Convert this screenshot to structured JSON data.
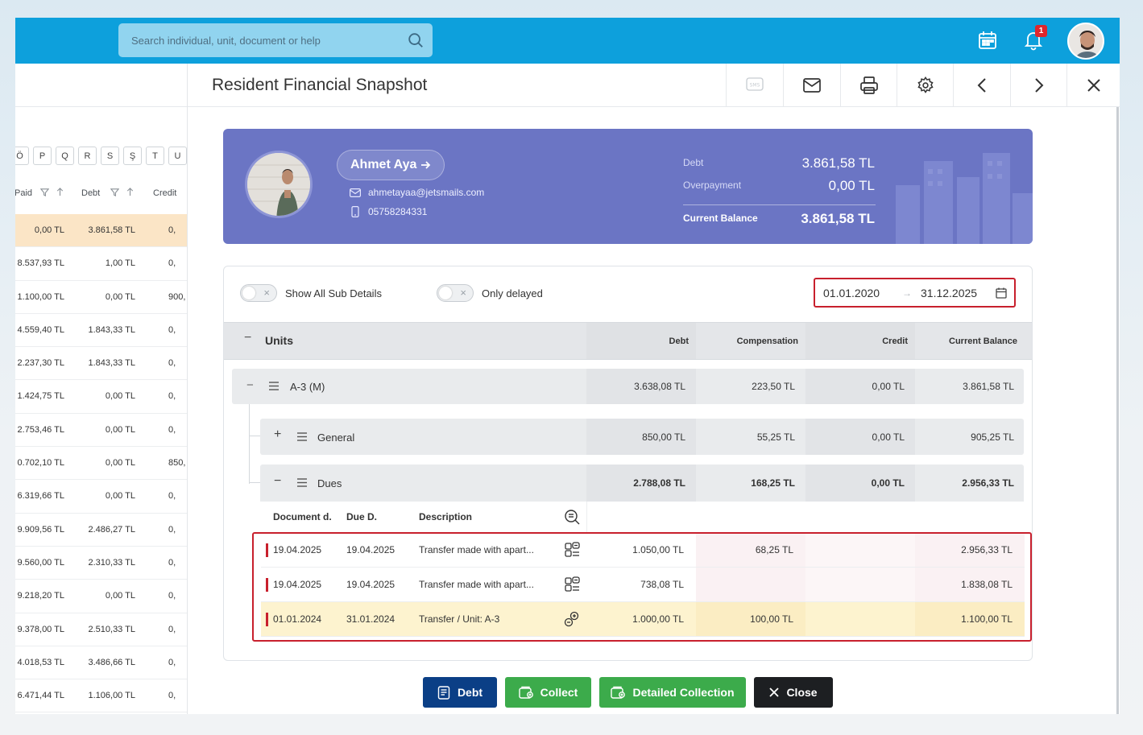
{
  "search": {
    "placeholder": "Search individual, unit, document or help"
  },
  "notifications": {
    "badge": "1"
  },
  "left_list": {
    "letters": [
      "Ö",
      "P",
      "Q",
      "R",
      "S",
      "Ş",
      "T",
      "U"
    ],
    "headers": {
      "paid": "Paid",
      "debt": "Debt",
      "credit": "Credit"
    },
    "rows": [
      {
        "paid": "0,00 TL",
        "debt": "3.861,58 TL",
        "credit": "0,",
        "highlight": true
      },
      {
        "paid": "8.537,93 TL",
        "debt": "1,00 TL",
        "credit": "0,"
      },
      {
        "paid": "1.100,00 TL",
        "debt": "0,00 TL",
        "credit": "900,"
      },
      {
        "paid": "4.559,40 TL",
        "debt": "1.843,33 TL",
        "credit": "0,"
      },
      {
        "paid": "2.237,30 TL",
        "debt": "1.843,33 TL",
        "credit": "0,"
      },
      {
        "paid": "1.424,75 TL",
        "debt": "0,00 TL",
        "credit": "0,"
      },
      {
        "paid": "2.753,46 TL",
        "debt": "0,00 TL",
        "credit": "0,"
      },
      {
        "paid": "0.702,10 TL",
        "debt": "0,00 TL",
        "credit": "850,"
      },
      {
        "paid": "6.319,66 TL",
        "debt": "0,00 TL",
        "credit": "0,"
      },
      {
        "paid": "9.909,56 TL",
        "debt": "2.486,27 TL",
        "credit": "0,"
      },
      {
        "paid": "9.560,00 TL",
        "debt": "2.310,33 TL",
        "credit": "0,"
      },
      {
        "paid": "9.218,20 TL",
        "debt": "0,00 TL",
        "credit": "0,"
      },
      {
        "paid": "9.378,00 TL",
        "debt": "2.510,33 TL",
        "credit": "0,"
      },
      {
        "paid": "4.018,53 TL",
        "debt": "3.486,66 TL",
        "credit": "0,"
      },
      {
        "paid": "6.471,44 TL",
        "debt": "1.106,00 TL",
        "credit": "0,"
      }
    ]
  },
  "drawer": {
    "title": "Resident Financial Snapshot",
    "sms_label": "SMS"
  },
  "profile": {
    "name": "Ahmet Aya",
    "email": "ahmetayaa@jetsmails.com",
    "phone": "05758284331",
    "debt_label": "Debt",
    "debt_value": "3.861,58 TL",
    "overpayment_label": "Overpayment",
    "overpayment_value": "0,00 TL",
    "balance_label": "Current Balance",
    "balance_value": "3.861,58 TL"
  },
  "filters": {
    "show_all_label": "Show All Sub Details",
    "only_delayed_label": "Only delayed",
    "date_from": "01.01.2020",
    "date_to": "31.12.2025"
  },
  "table": {
    "units_label": "Units",
    "col_debt": "Debt",
    "col_compensation": "Compensation",
    "col_credit": "Credit",
    "col_balance": "Current Balance",
    "unit": {
      "name": "A-3 (M)",
      "debt": "3.638,08 TL",
      "compensation": "223,50 TL",
      "credit": "0,00 TL",
      "balance": "3.861,58 TL"
    },
    "general": {
      "name": "General",
      "debt": "850,00 TL",
      "compensation": "55,25 TL",
      "credit": "0,00 TL",
      "balance": "905,25 TL"
    },
    "dues": {
      "name": "Dues",
      "debt": "2.788,08 TL",
      "compensation": "168,25 TL",
      "credit": "0,00 TL",
      "balance": "2.956,33 TL"
    },
    "doc_headers": {
      "doc_date": "Document d.",
      "due_date": "Due D.",
      "description": "Description"
    },
    "docs": [
      {
        "doc_date": "19.04.2025",
        "due_date": "19.04.2025",
        "description": "Transfer made with apart...",
        "debt": "1.050,00 TL",
        "compensation": "68,25 TL",
        "balance": "2.956,33 TL"
      },
      {
        "doc_date": "19.04.2025",
        "due_date": "19.04.2025",
        "description": "Transfer made with apart...",
        "debt": "738,08 TL",
        "compensation": "",
        "balance": "1.838,08 TL"
      },
      {
        "doc_date": "01.01.2024",
        "due_date": "31.01.2024",
        "description": "Transfer / Unit: A-3",
        "debt": "1.000,00 TL",
        "compensation": "100,00 TL",
        "balance": "1.100,00 TL"
      }
    ]
  },
  "actions": {
    "debt": "Debt",
    "collect": "Collect",
    "detailed_collection": "Detailed Collection",
    "close": "Close"
  },
  "colors": {
    "topbar": "#0da0dc",
    "card": "#6b75c4",
    "debt_btn": "#0b3f86",
    "collect_btn": "#3cab4b",
    "close_btn": "#1d1f22",
    "highlight_red": "#c8202d"
  }
}
